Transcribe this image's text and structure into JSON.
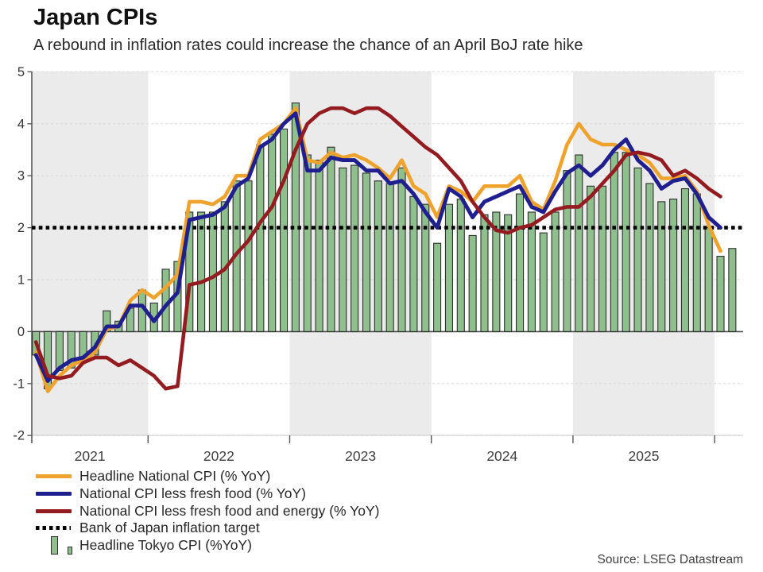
{
  "header": {
    "title": "Japan CPIs",
    "subtitle": "A rebound in inflation rates could increase the chance of an April BoJ rate hike"
  },
  "source": {
    "label": "Source: LSEG Datastream"
  },
  "colors": {
    "headline_national": "#F0A32C",
    "core_cpi": "#1F1F8F",
    "core_core_cpi": "#941B1F",
    "target_line": "#000000",
    "tokyo_bar_fill": "#8FBF8D",
    "tokyo_bar_border": "#2E2E2E",
    "shaded_band": "#EBEBEB",
    "gridline": "#D8D8D8",
    "axis": "#595959",
    "tick_label": "#333333"
  },
  "legend": {
    "items": [
      "Headline National CPI (% YoY)",
      "National CPI less fresh food (% YoY)",
      "National CPI less fresh food and energy (% YoY)",
      "Bank of Japan inflation target",
      "Headline Tokyo CPI (%YoY)"
    ]
  },
  "chart_data": {
    "type": "combo",
    "title": "Japan CPIs",
    "subtitle": "A rebound in inflation rates could increase the chance of an April BoJ rate hike",
    "x_axis": {
      "frequency": "monthly",
      "start_month": "2021-03",
      "year_labels": [
        "2021",
        "2022",
        "2023",
        "2024",
        "2025"
      ],
      "shaded_year_labels": [
        "2021",
        "2023",
        "2025"
      ],
      "grid": "off"
    },
    "y_axis": {
      "min": -2,
      "max": 5,
      "ticks": [
        5,
        4,
        3,
        2,
        1,
        0,
        -1,
        -2
      ],
      "grid": "dashed"
    },
    "target_line": {
      "label": "Bank of Japan inflation target",
      "value": 2
    },
    "legend_position": "bottom-left",
    "series": [
      {
        "name": "Headline National CPI (% YoY)",
        "type": "line",
        "color": "#F0A32C",
        "start_month": "2021-03",
        "values": [
          -0.4,
          -1.15,
          -0.85,
          -0.65,
          -0.55,
          -0.4,
          0.05,
          0.1,
          0.6,
          0.8,
          0.65,
          0.85,
          1.1,
          2.5,
          2.5,
          2.45,
          2.6,
          3.0,
          3.0,
          3.7,
          3.85,
          4.0,
          4.3,
          3.3,
          3.25,
          3.45,
          3.35,
          3.4,
          3.3,
          3.15,
          2.95,
          3.3,
          2.8,
          2.65,
          2.2,
          2.8,
          2.7,
          2.5,
          2.8,
          2.8,
          2.8,
          3.0,
          2.5,
          2.35,
          2.9,
          3.6,
          4.0,
          3.7,
          3.6,
          3.6,
          3.5,
          3.4,
          3.25,
          2.95,
          2.95,
          3.0,
          2.7,
          2.05,
          1.55
        ]
      },
      {
        "name": "National CPI less fresh food (% YoY)",
        "type": "line",
        "color": "#1F1F8F",
        "start_month": "2021-03",
        "values": [
          -0.45,
          -0.95,
          -0.7,
          -0.55,
          -0.5,
          -0.3,
          0.1,
          0.1,
          0.5,
          0.5,
          0.2,
          0.5,
          0.75,
          2.15,
          2.2,
          2.25,
          2.4,
          2.8,
          2.95,
          3.55,
          3.7,
          4.0,
          4.2,
          3.1,
          3.1,
          3.35,
          3.3,
          3.3,
          3.1,
          3.1,
          2.85,
          2.9,
          2.65,
          2.3,
          2.0,
          2.75,
          2.6,
          2.2,
          2.5,
          2.6,
          2.7,
          2.8,
          2.4,
          2.3,
          2.7,
          3.05,
          3.2,
          3.0,
          3.2,
          3.5,
          3.7,
          3.3,
          3.1,
          2.75,
          2.9,
          2.95,
          2.65,
          2.2,
          2.0
        ]
      },
      {
        "name": "National CPI less fresh food and energy (% YoY)",
        "type": "line",
        "color": "#941B1F",
        "start_month": "2021-03",
        "values": [
          -0.2,
          -0.85,
          -0.9,
          -0.85,
          -0.6,
          -0.5,
          -0.5,
          -0.65,
          -0.55,
          -0.7,
          -0.85,
          -1.1,
          -1.05,
          0.9,
          0.95,
          1.05,
          1.2,
          1.5,
          1.75,
          2.1,
          2.4,
          2.9,
          3.5,
          4.0,
          4.2,
          4.3,
          4.3,
          4.2,
          4.3,
          4.3,
          4.15,
          3.95,
          3.75,
          3.55,
          3.4,
          3.15,
          2.9,
          2.5,
          2.2,
          1.95,
          1.9,
          2.0,
          2.05,
          2.2,
          2.35,
          2.4,
          2.4,
          2.6,
          2.85,
          3.1,
          3.4,
          3.45,
          3.4,
          3.3,
          3.0,
          3.1,
          2.95,
          2.75,
          2.6
        ]
      },
      {
        "name": "Headline Tokyo CPI (%YoY)",
        "type": "bar",
        "color": "#8FBF8D",
        "border": "#2E2E2E",
        "start_month": "2021-03",
        "values": [
          -0.45,
          -1.1,
          -0.75,
          -0.7,
          -0.55,
          -0.45,
          0.4,
          0.2,
          0.45,
          0.8,
          0.55,
          1.2,
          1.35,
          2.3,
          2.3,
          2.3,
          2.5,
          2.9,
          2.9,
          3.6,
          3.8,
          3.9,
          4.4,
          3.4,
          3.3,
          3.55,
          3.15,
          3.2,
          3.05,
          2.9,
          2.85,
          3.15,
          2.6,
          2.45,
          1.7,
          2.45,
          2.55,
          1.85,
          2.25,
          2.3,
          2.25,
          2.65,
          2.3,
          1.9,
          2.3,
          3.1,
          3.4,
          2.8,
          2.8,
          3.45,
          3.45,
          3.15,
          2.85,
          2.5,
          2.55,
          2.75,
          2.65,
          2.0,
          1.45,
          1.6
        ]
      }
    ]
  }
}
